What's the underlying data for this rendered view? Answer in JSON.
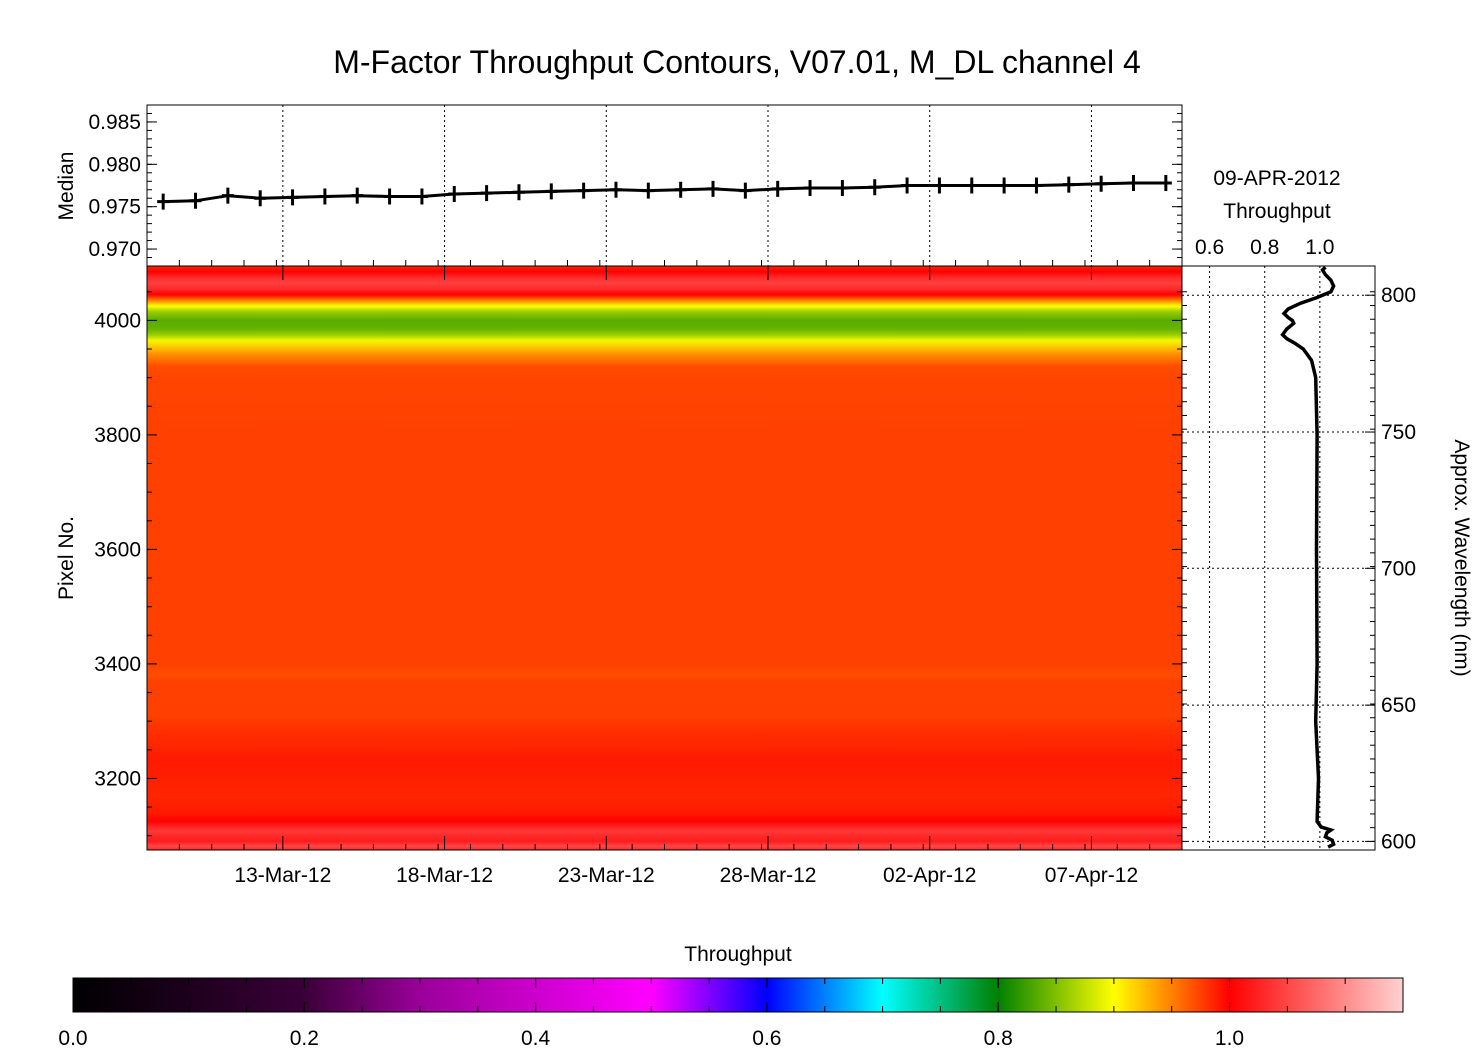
{
  "title": "M-Factor Throughput Contours, V07.01, M_DL channel 4",
  "colors": {
    "background": "#ffffff",
    "axes": "#000000",
    "colormap": [
      "#000000",
      "#3a0038",
      "#9a009a",
      "#ff00ff",
      "#0000ff",
      "#00ffff",
      "#008000",
      "#ffff00",
      "#ff8000",
      "#ff0000",
      "#ffd2d2"
    ]
  },
  "chart_data": [
    {
      "id": "median",
      "type": "line",
      "ylabel": "Median",
      "ylim": [
        0.968,
        0.987
      ],
      "yticks": [
        0.97,
        0.975,
        0.98,
        0.985
      ],
      "ytick_labels": [
        "0.970",
        "0.975",
        "0.980",
        "0.985"
      ],
      "xlim": [
        0,
        32
      ],
      "marker": "plus",
      "grid": "vertical dotted",
      "x": [
        0.5,
        1.5,
        2.5,
        3.5,
        4.5,
        5.5,
        6.5,
        7.5,
        8.5,
        9.5,
        10.5,
        11.5,
        12.5,
        13.5,
        14.5,
        15.5,
        16.5,
        17.5,
        18.5,
        19.5,
        20.5,
        21.5,
        22.5,
        23.5,
        24.5,
        25.5,
        26.5,
        27.5,
        28.5,
        29.5,
        30.5,
        31.5
      ],
      "values": [
        0.9756,
        0.9757,
        0.9763,
        0.976,
        0.9761,
        0.9762,
        0.9763,
        0.9762,
        0.9762,
        0.9765,
        0.9766,
        0.9767,
        0.9768,
        0.9769,
        0.977,
        0.9769,
        0.977,
        0.9771,
        0.9769,
        0.9771,
        0.9772,
        0.9772,
        0.9773,
        0.9775,
        0.9775,
        0.9775,
        0.9775,
        0.9775,
        0.9776,
        0.9777,
        0.9778,
        0.9778
      ]
    },
    {
      "id": "contour",
      "type": "heatmap",
      "ylabel": "Pixel No.",
      "ylim": [
        3075,
        4095
      ],
      "yticks": [
        3200,
        3400,
        3600,
        3800,
        4000
      ],
      "xlim": [
        0,
        32
      ],
      "x_tick_positions": [
        4.2,
        9.2,
        14.2,
        19.2,
        24.2,
        29.2
      ],
      "x_tick_labels": [
        "13-Mar-12",
        "18-Mar-12",
        "23-Mar-12",
        "28-Mar-12",
        "02-Apr-12",
        "07-Apr-12"
      ],
      "profile": {
        "pixel": [
          3075,
          3082,
          3090,
          3100,
          3108,
          3118,
          3125,
          3140,
          3170,
          3200,
          3230,
          3260,
          3290,
          3310,
          3330,
          3350,
          3370,
          3380,
          3400,
          3600,
          3800,
          3900,
          3920,
          3940,
          3955,
          3965,
          3975,
          3985,
          4000,
          4015,
          4025,
          4035,
          4045,
          4055,
          4065,
          4075,
          4085,
          4095
        ],
        "value": [
          1.03,
          1.05,
          1.02,
          1.03,
          1.04,
          1.02,
          1.0,
          0.99,
          0.985,
          0.988,
          0.99,
          0.985,
          0.98,
          0.975,
          0.975,
          0.975,
          0.975,
          0.97,
          0.975,
          0.975,
          0.975,
          0.973,
          0.97,
          0.945,
          0.92,
          0.895,
          0.86,
          0.84,
          0.835,
          0.86,
          0.9,
          0.95,
          1.0,
          1.03,
          1.045,
          1.03,
          1.0,
          0.985
        ]
      }
    },
    {
      "id": "throughput-profile",
      "type": "line",
      "title": "09-APR-2012",
      "xlabel": "Throughput",
      "xlim": [
        0.5,
        1.2
      ],
      "xticks": [
        0.6,
        0.8,
        1.0
      ],
      "xtick_labels": [
        "0.6",
        "0.8",
        "1.0"
      ],
      "right_axis_label": "Approx. Wavelength (nm)",
      "wavelength_ticks": [
        600,
        650,
        700,
        750,
        800
      ],
      "wavelength_pixels": [
        3090,
        3328,
        3567,
        3805,
        4044
      ],
      "pixel": [
        3080,
        3085,
        3092,
        3098,
        3105,
        3110,
        3115,
        3125,
        3200,
        3300,
        3400,
        3600,
        3800,
        3900,
        3930,
        3950,
        3960,
        3968,
        3975,
        3985,
        3995,
        4000,
        4005,
        4012,
        4020,
        4030,
        4040,
        4050,
        4060,
        4070,
        4080,
        4088,
        4093
      ],
      "throughput": [
        1.03,
        1.05,
        1.045,
        1.02,
        1.025,
        1.04,
        1.005,
        0.99,
        0.995,
        0.985,
        0.99,
        0.988,
        0.99,
        0.985,
        0.97,
        0.94,
        0.91,
        0.88,
        0.865,
        0.88,
        0.905,
        0.9,
        0.885,
        0.87,
        0.885,
        0.93,
        0.99,
        1.04,
        1.05,
        1.04,
        1.02,
        1.01,
        1.02
      ]
    },
    {
      "id": "colorbar",
      "type": "heatmap",
      "title": "Throughput",
      "range": [
        0.0,
        1.15
      ],
      "ticks": [
        0.0,
        0.2,
        0.4,
        0.6,
        0.8,
        1.0
      ],
      "tick_labels": [
        "0.0",
        "0.2",
        "0.4",
        "0.6",
        "0.8",
        "1.0"
      ],
      "stops": [
        {
          "value": 0.0,
          "color": "#000000"
        },
        {
          "value": 0.2,
          "color": "#3a0038"
        },
        {
          "value": 0.3,
          "color": "#9a009a"
        },
        {
          "value": 0.5,
          "color": "#ff00ff"
        },
        {
          "value": 0.6,
          "color": "#0000ff"
        },
        {
          "value": 0.7,
          "color": "#00ffff"
        },
        {
          "value": 0.8,
          "color": "#008000"
        },
        {
          "value": 0.9,
          "color": "#ffff00"
        },
        {
          "value": 0.95,
          "color": "#ff8000"
        },
        {
          "value": 1.0,
          "color": "#ff0000"
        },
        {
          "value": 1.15,
          "color": "#ffd2d2"
        }
      ]
    }
  ]
}
